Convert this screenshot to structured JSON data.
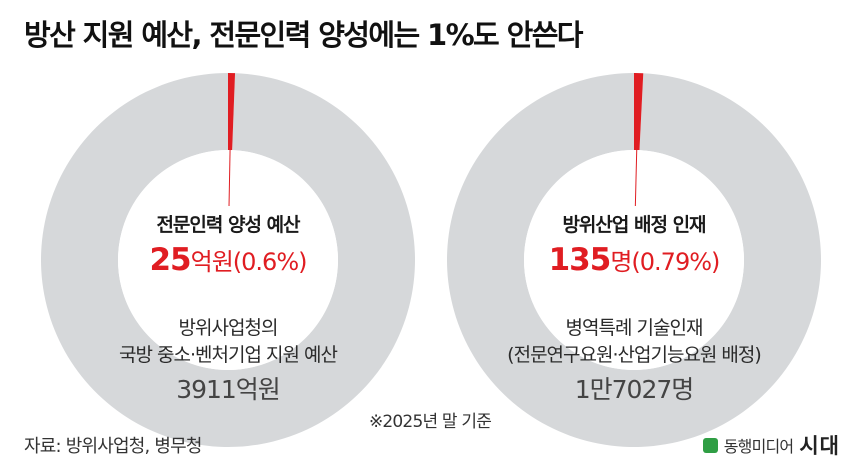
{
  "title": "방산 지원 예산, 전문인력 양성에는 1%도 안쓴다",
  "chart_data": [
    {
      "type": "pie",
      "highlight_category": "전문인력 양성 예산",
      "value": 25,
      "value_unit": "억원",
      "value_percent_label": "(0.6%)",
      "percent": 0.6,
      "total_label_lines": [
        "방위사업청의",
        "국방 중소·벤처기업 지원 예산"
      ],
      "total_value_label": "3911억원",
      "total": 3911,
      "colors": {
        "highlight": "#e01d22",
        "rest": "#d6d8da"
      }
    },
    {
      "type": "pie",
      "highlight_category": "방위산업 배정 인재",
      "value": 135,
      "value_unit": "명",
      "value_percent_label": "(0.79%)",
      "percent": 0.79,
      "total_label_lines": [
        "병역특례 기술인재",
        "(전문연구요원·산업기능요원 배정)"
      ],
      "total_value_label": "1만7027명",
      "total": 17027,
      "colors": {
        "highlight": "#e01d22",
        "rest": "#d6d8da"
      }
    }
  ],
  "footnote": "※2025년 말 기준",
  "source": "자료: 방위사업청, 병무청",
  "logo": {
    "brand": "동행미디어",
    "strong": "시대",
    "color": "#2f9e44"
  }
}
